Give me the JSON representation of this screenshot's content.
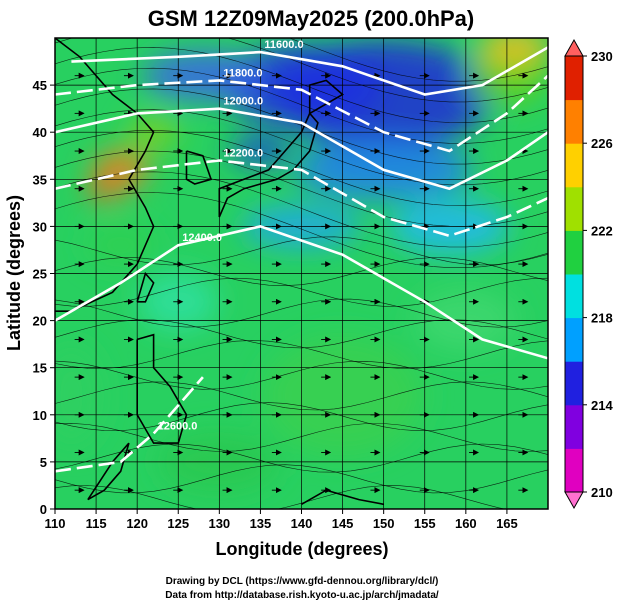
{
  "chart_data": {
    "type": "heatmap",
    "title": "GSM 12Z09May2025 (200.0hPa)",
    "xlabel": "Longitude (degrees)",
    "ylabel": "Latitude  (degrees)",
    "xlim": [
      110,
      170
    ],
    "ylim": [
      0,
      50
    ],
    "xticks": [
      110,
      115,
      120,
      125,
      130,
      135,
      140,
      145,
      150,
      155,
      160,
      165
    ],
    "yticks": [
      0,
      5,
      10,
      15,
      20,
      25,
      30,
      35,
      40,
      45
    ],
    "grid": true,
    "colorbar": {
      "min": 210,
      "max": 230,
      "ticks": [
        210,
        214,
        218,
        222,
        226,
        230
      ],
      "colors": [
        "#e000c0",
        "#8000e0",
        "#2020e0",
        "#00a0ff",
        "#00e0e0",
        "#20d040",
        "#a0e000",
        "#ffd000",
        "#ff8000",
        "#e02000"
      ]
    },
    "contours": [
      {
        "label": "11600.0",
        "lat_at_x": [
          [
            112,
            47.5
          ],
          [
            125,
            48
          ],
          [
            135,
            48.5
          ],
          [
            145,
            47
          ],
          [
            155,
            44
          ],
          [
            162,
            45
          ],
          [
            170,
            49
          ]
        ]
      },
      {
        "label": "11800.0",
        "lat_at_x": [
          [
            110,
            44
          ],
          [
            120,
            45
          ],
          [
            130,
            45.5
          ],
          [
            140,
            44.5
          ],
          [
            150,
            40
          ],
          [
            158,
            38
          ],
          [
            165,
            42
          ],
          [
            170,
            46
          ]
        ]
      },
      {
        "label": "12000.0",
        "lat_at_x": [
          [
            110,
            40
          ],
          [
            120,
            42
          ],
          [
            130,
            42.5
          ],
          [
            140,
            41
          ],
          [
            150,
            36
          ],
          [
            158,
            34
          ],
          [
            165,
            37
          ],
          [
            170,
            40
          ]
        ]
      },
      {
        "label": "12200.0",
        "lat_at_x": [
          [
            110,
            34
          ],
          [
            120,
            36
          ],
          [
            130,
            37
          ],
          [
            140,
            36
          ],
          [
            150,
            31
          ],
          [
            158,
            29
          ],
          [
            165,
            31
          ],
          [
            170,
            33
          ]
        ]
      },
      {
        "label": "12400.0",
        "lat_at_x": [
          [
            110,
            20
          ],
          [
            118,
            24
          ],
          [
            125,
            28
          ],
          [
            135,
            30
          ],
          [
            145,
            27
          ],
          [
            155,
            22
          ],
          [
            162,
            18
          ],
          [
            170,
            16
          ]
        ]
      },
      {
        "label": "12600.0",
        "lat_at_x": [
          [
            110,
            4
          ],
          [
            118,
            5
          ],
          [
            122,
            8
          ],
          [
            126,
            12
          ],
          [
            128,
            14
          ]
        ]
      }
    ]
  },
  "credits": {
    "line1": "Drawing by DCL (https://www.gfd-dennou.org/library/dcl/)",
    "line2": "Data from http://database.rish.kyoto-u.ac.jp/arch/jmadata/"
  }
}
